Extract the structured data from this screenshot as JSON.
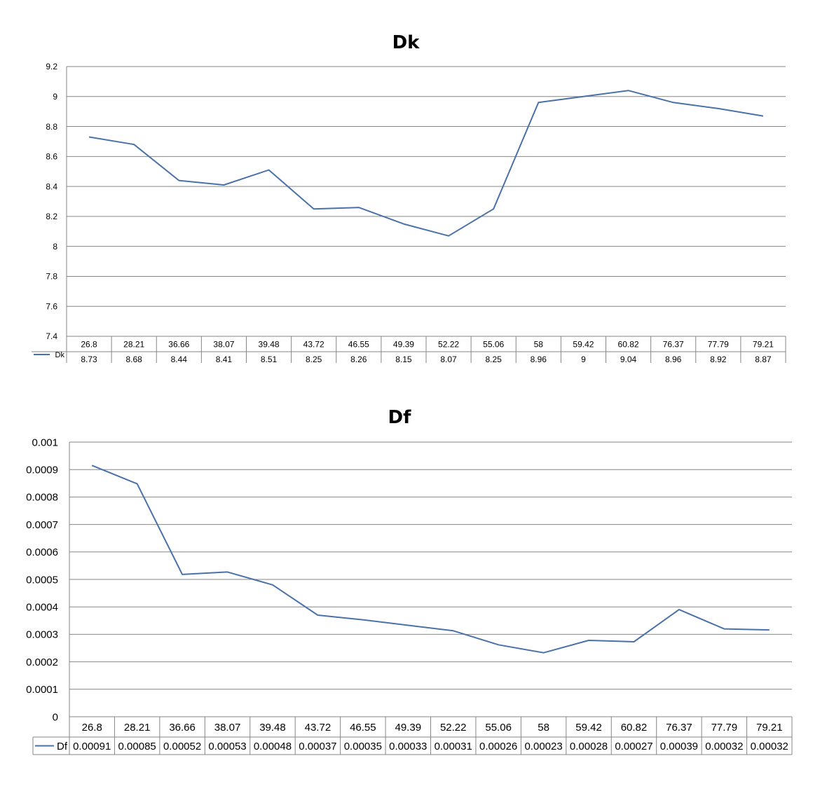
{
  "series_color": "#4a72a8",
  "chart_data": [
    {
      "type": "line",
      "title": "Dk",
      "categories": [
        "26.8",
        "28.21",
        "36.66",
        "38.07",
        "39.48",
        "43.72",
        "46.55",
        "49.39",
        "52.22",
        "55.06",
        "58",
        "59.42",
        "60.82",
        "76.37",
        "77.79",
        "79.21"
      ],
      "series": [
        {
          "name": "Dk",
          "values": [
            8.73,
            8.68,
            8.44,
            8.41,
            8.51,
            8.25,
            8.26,
            8.15,
            8.07,
            8.25,
            8.96,
            9,
            9.04,
            8.96,
            8.92,
            8.87
          ],
          "labels": [
            "8.73",
            "8.68",
            "8.44",
            "8.41",
            "8.51",
            "8.25",
            "8.26",
            "8.15",
            "8.07",
            "8.25",
            "8.96",
            "9",
            "9.04",
            "8.96",
            "8.92",
            "8.87"
          ]
        }
      ],
      "ylim": [
        7.4,
        9.2
      ],
      "yticks": [
        "7.4",
        "7.6",
        "7.8",
        "8",
        "8.2",
        "8.4",
        "8.6",
        "8.8",
        "9",
        "9.2"
      ],
      "grid": true,
      "legend": "data table"
    },
    {
      "type": "line",
      "title": "Df",
      "categories": [
        "26.8",
        "28.21",
        "36.66",
        "38.07",
        "39.48",
        "43.72",
        "46.55",
        "49.39",
        "52.22",
        "55.06",
        "58",
        "59.42",
        "60.82",
        "76.37",
        "77.79",
        "79.21"
      ],
      "series": [
        {
          "name": "Df",
          "values": [
            0.000915,
            0.000848,
            0.000518,
            0.000527,
            0.00048,
            0.00037,
            0.000353,
            0.000333,
            0.000313,
            0.000262,
            0.000233,
            0.000278,
            0.000273,
            0.00039,
            0.00032,
            0.000316
          ],
          "labels": [
            "0.00091",
            "0.00085",
            "0.00052",
            "0.00053",
            "0.00048",
            "0.00037",
            "0.00035",
            "0.00033",
            "0.00031",
            "0.00026",
            "0.00023",
            "0.00028",
            "0.00027",
            "0.00039",
            "0.00032",
            "0.00032"
          ]
        }
      ],
      "ylim": [
        0,
        0.001
      ],
      "yticks": [
        "0",
        "0.0001",
        "0.0002",
        "0.0003",
        "0.0004",
        "0.0005",
        "0.0006",
        "0.0007",
        "0.0008",
        "0.0009",
        "0.001"
      ],
      "grid": true,
      "legend": "data table"
    }
  ]
}
